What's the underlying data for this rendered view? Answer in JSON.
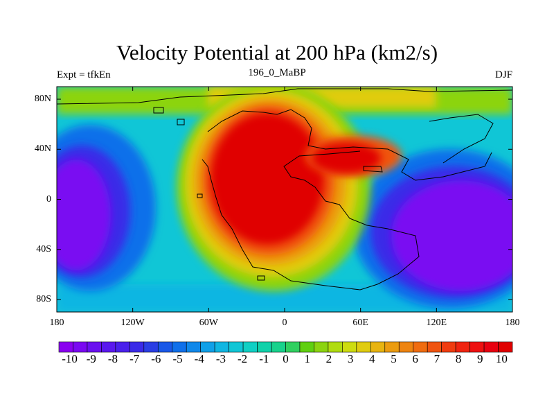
{
  "title": "Velocity Potential at 200 hPa (km2/s)",
  "subtitle_left": "Expt = tfkEn",
  "subtitle_center": "196_0_MaBP",
  "subtitle_right": "DJF",
  "chart_data": {
    "type": "heatmap",
    "variable": "Velocity Potential at 200 hPa",
    "units": "km2/s",
    "projection": "cylindrical equidistant",
    "xlim": [
      -180,
      180
    ],
    "ylim": [
      -90,
      90
    ],
    "x_ticks": [
      {
        "value": -180,
        "label": "180"
      },
      {
        "value": -120,
        "label": "120W"
      },
      {
        "value": -60,
        "label": "60W"
      },
      {
        "value": 0,
        "label": "0"
      },
      {
        "value": 60,
        "label": "60E"
      },
      {
        "value": 120,
        "label": "120E"
      },
      {
        "value": 180,
        "label": "180"
      }
    ],
    "y_ticks": [
      {
        "value": 80,
        "label": "80N"
      },
      {
        "value": 40,
        "label": "40N"
      },
      {
        "value": 0,
        "label": "0"
      },
      {
        "value": -40,
        "label": "40S"
      },
      {
        "value": -80,
        "label": "80S"
      }
    ],
    "features": [
      {
        "name": "maximum",
        "lon": -10,
        "lat": 10,
        "value": 10
      },
      {
        "name": "minimum",
        "lon": -150,
        "lat": -10,
        "value": -10
      },
      {
        "name": "minimum",
        "lon": 130,
        "lat": -15,
        "value": -10
      }
    ],
    "colorbar": {
      "min": -10.5,
      "max": 10.5,
      "step": 0.5,
      "labels": [
        "-10",
        "-9",
        "-8",
        "-7",
        "-6",
        "-5",
        "-4",
        "-3",
        "-2",
        "-1",
        "0",
        "1",
        "2",
        "3",
        "4",
        "5",
        "6",
        "7",
        "8",
        "9",
        "10"
      ],
      "label_values": [
        -10,
        -9,
        -8,
        -7,
        -6,
        -5,
        -4,
        -3,
        -2,
        -1,
        0,
        1,
        2,
        3,
        4,
        5,
        6,
        7,
        8,
        9,
        10
      ],
      "colors": [
        "#8a00f0",
        "#7a08f2",
        "#6a10f0",
        "#5a18ee",
        "#4a20ec",
        "#3a2ae8",
        "#2a3ee4",
        "#1a58e8",
        "#1070ea",
        "#1088ea",
        "#10a0e8",
        "#10b6e2",
        "#10c6d6",
        "#10d0c4",
        "#10d2aa",
        "#18d28c",
        "#30d060",
        "#60d010",
        "#8cd410",
        "#b0dc10",
        "#cedc10",
        "#e0cc10",
        "#e8b410",
        "#ec9c10",
        "#ee8410",
        "#f06c10",
        "#f05410",
        "#f03c10",
        "#f02410",
        "#ee1010",
        "#e80010",
        "#e00000"
      ]
    },
    "coastline": "low-resolution land mask outline (Africa, Eurasia, Americas, Australia)"
  }
}
